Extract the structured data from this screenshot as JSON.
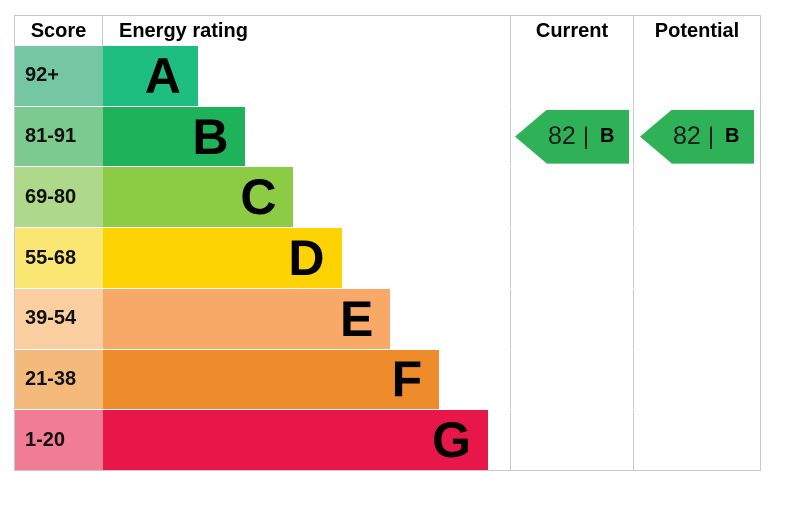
{
  "header": {
    "score": "Score",
    "energy_rating": "Energy rating",
    "current": "Current",
    "potential": "Potential"
  },
  "bands": [
    {
      "score": "92+",
      "letter": "A",
      "bar_color": "#1dbe80",
      "score_color": "#74c7a2",
      "bar_width_pct": 23.3
    },
    {
      "score": "81-91",
      "letter": "B",
      "bar_color": "#1eb25a",
      "score_color": "#7cca90",
      "bar_width_pct": 35.0
    },
    {
      "score": "69-80",
      "letter": "C",
      "bar_color": "#8ccb44",
      "score_color": "#aed98a",
      "bar_width_pct": 46.8
    },
    {
      "score": "55-68",
      "letter": "D",
      "bar_color": "#fdd303",
      "score_color": "#fae673",
      "bar_width_pct": 58.6
    },
    {
      "score": "39-54",
      "letter": "E",
      "bar_color": "#f9a967",
      "score_color": "#fbcf9f",
      "bar_width_pct": 70.6
    },
    {
      "score": "21-38",
      "letter": "F",
      "bar_color": "#ee8b2b",
      "score_color": "#f4ba7c",
      "bar_width_pct": 82.6
    },
    {
      "score": "1-20",
      "letter": "G",
      "bar_color": "#e8174a",
      "score_color": "#f07d94",
      "bar_width_pct": 94.6
    }
  ],
  "ratings": {
    "divider": "|",
    "current": {
      "value": "82",
      "band": "B",
      "row_index": 1,
      "arrow_color": "#2eb157"
    },
    "potential": {
      "value": "82",
      "band": "B",
      "row_index": 1,
      "arrow_color": "#2eb157"
    }
  },
  "chart_data": {
    "type": "bar",
    "orientation": "horizontal",
    "title": "Energy rating",
    "columns": [
      "Score",
      "Energy rating",
      "Current",
      "Potential"
    ],
    "categories": [
      "A",
      "B",
      "C",
      "D",
      "E",
      "F",
      "G"
    ],
    "score_ranges": [
      "92+",
      "81-91",
      "69-80",
      "55-68",
      "39-54",
      "21-38",
      "1-20"
    ],
    "bar_lengths_relative": [
      1.0,
      1.5,
      2.0,
      2.5,
      3.0,
      3.5,
      4.0
    ],
    "band_colors": [
      "#1dbe80",
      "#1eb25a",
      "#8ccb44",
      "#fdd303",
      "#f9a967",
      "#ee8b2b",
      "#e8174a"
    ],
    "current": {
      "score": 82,
      "band": "B"
    },
    "potential": {
      "score": 82,
      "band": "B"
    },
    "legend_position": "none",
    "grid": false
  }
}
